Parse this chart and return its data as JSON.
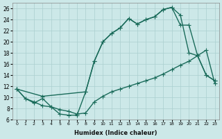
{
  "line_a_x": [
    0,
    1,
    2,
    3,
    4,
    5,
    6,
    7,
    8,
    9,
    10,
    11,
    12,
    13,
    14,
    15,
    16,
    17,
    18,
    19,
    20,
    21,
    22,
    23
  ],
  "line_a_y": [
    11.5,
    9.8,
    9.2,
    8.5,
    8.3,
    7.0,
    6.8,
    6.8,
    11.0,
    16.5,
    20.0,
    21.5,
    22.5,
    24.2,
    23.2,
    24.0,
    24.5,
    25.8,
    26.2,
    24.8,
    18.0,
    17.5,
    14.0,
    13.0
  ],
  "line_b_x": [
    0,
    1,
    2,
    3,
    4,
    5,
    6,
    7,
    8,
    9,
    10,
    11,
    12,
    13,
    14,
    15,
    16,
    17,
    18,
    19,
    20,
    21,
    22,
    23
  ],
  "line_b_y": [
    11.5,
    9.8,
    9.0,
    9.8,
    8.3,
    7.8,
    7.5,
    7.0,
    7.2,
    9.2,
    10.2,
    11.0,
    11.5,
    12.0,
    12.5,
    13.0,
    13.5,
    14.2,
    15.0,
    15.8,
    16.5,
    17.5,
    18.5,
    12.5
  ],
  "line_c_x": [
    0,
    3,
    8,
    9,
    10,
    11,
    12,
    13,
    14,
    15,
    16,
    17,
    18,
    19,
    20,
    21,
    22,
    23
  ],
  "line_c_y": [
    11.5,
    10.2,
    11.0,
    16.5,
    20.0,
    21.5,
    22.5,
    24.2,
    23.2,
    24.0,
    24.5,
    25.8,
    26.2,
    23.0,
    23.0,
    17.5,
    14.0,
    13.0
  ],
  "color": "#1a6b5a",
  "bg_color": "#cce8e8",
  "grid_color": "#aacfcf",
  "xlabel": "Humidex (Indice chaleur)",
  "xlim": [
    -0.5,
    23.5
  ],
  "ylim": [
    6,
    27
  ],
  "xticks": [
    0,
    1,
    2,
    3,
    4,
    5,
    6,
    7,
    8,
    9,
    10,
    11,
    12,
    13,
    14,
    15,
    16,
    17,
    18,
    19,
    20,
    21,
    22,
    23
  ],
  "yticks": [
    6,
    8,
    10,
    12,
    14,
    16,
    18,
    20,
    22,
    24,
    26
  ],
  "marker_size": 2.5,
  "linewidth": 1.0
}
